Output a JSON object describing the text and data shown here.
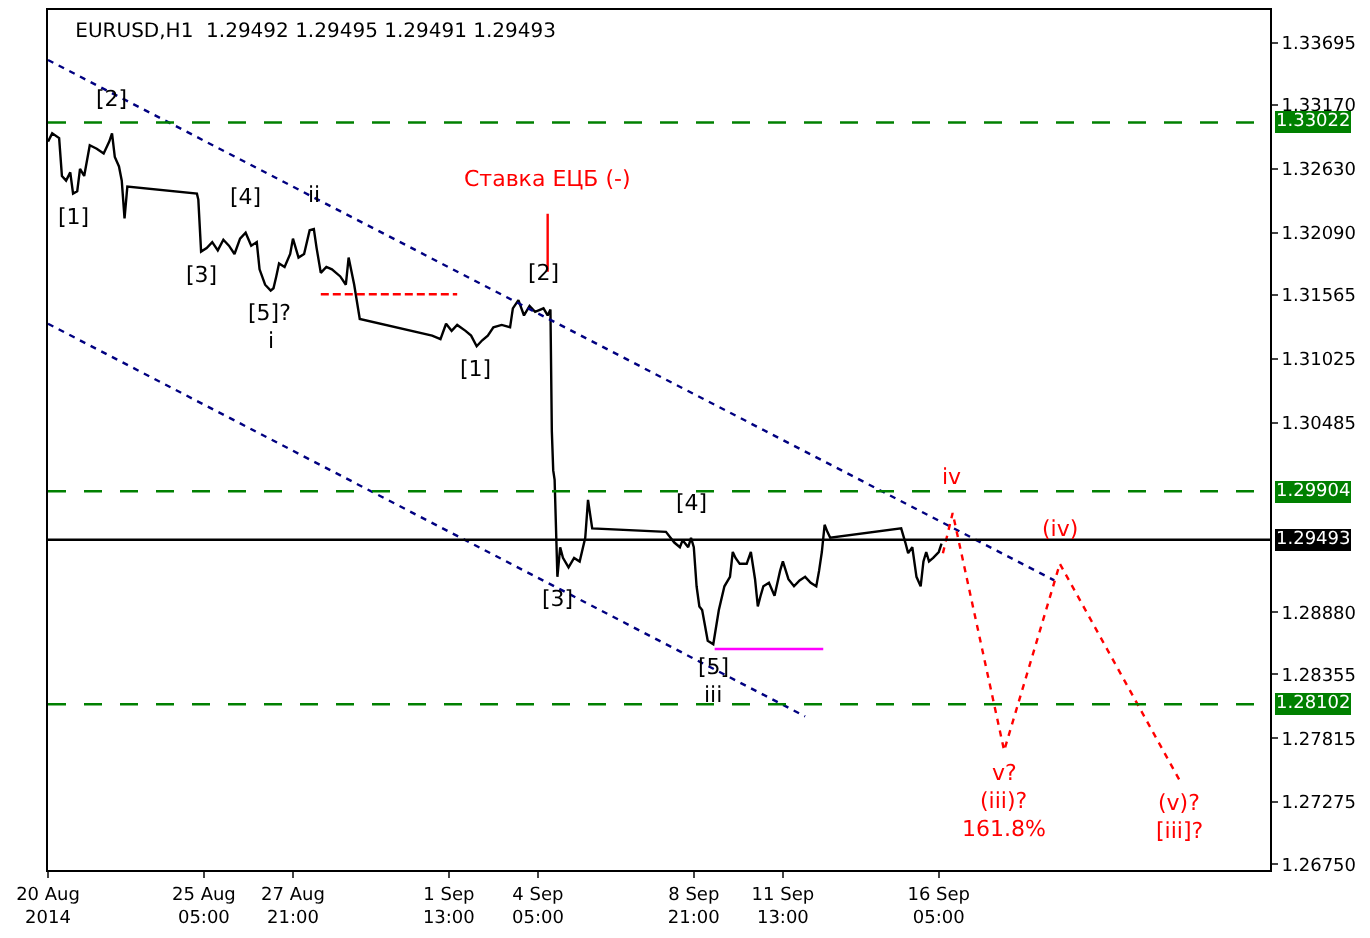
{
  "chart_data": {
    "type": "line",
    "title": "EURUSD,H1  1.29492 1.29495 1.29491 1.29493",
    "xlim": [
      "2014-08-20T13:00",
      "2014-09-26T03:00"
    ],
    "ylim": [
      1.26701,
      1.33973
    ],
    "xticks": [
      {
        "value": "2014-08-20T13:00",
        "label": "20 Aug 2014"
      },
      {
        "value": "2014-08-25T05:00",
        "label": "25 Aug 05:00"
      },
      {
        "value": "2014-08-27T21:00",
        "label": "27 Aug 21:00"
      },
      {
        "value": "2014-09-01T13:00",
        "label": "1 Sep 13:00"
      },
      {
        "value": "2014-09-04T05:00",
        "label": "4 Sep 05:00"
      },
      {
        "value": "2014-09-08T21:00",
        "label": "8 Sep 21:00"
      },
      {
        "value": "2014-09-11T13:00",
        "label": "11 Sep 13:00"
      },
      {
        "value": "2014-09-16T05:00",
        "label": "16 Sep 05:00"
      }
    ],
    "yticks": [
      1.33695,
      {
        "value": 1.3317,
        "label": "1.33170"
      },
      {
        "value": 1.3263,
        "label": "1.32630"
      },
      {
        "value": 1.3209,
        "label": "1.32090"
      },
      1.31565,
      1.31025,
      1.30485,
      {
        "value": 1.2888,
        "label": "1.28880"
      },
      1.28355,
      1.27815,
      1.27275,
      {
        "value": 1.2675,
        "label": "1.26750"
      }
    ],
    "series": [
      {
        "color": "#000000",
        "line_style": "solid",
        "x": [
          "2014-08-20T13:00",
          "2014-08-20T16:00",
          "2014-08-20T21:00",
          "2014-08-20T23:00",
          "2014-08-21T02:00",
          "2014-08-21T05:00",
          "2014-08-21T07:00",
          "2014-08-21T10:00",
          "2014-08-21T12:00",
          "2014-08-21T15:00",
          "2014-08-21T19:00",
          "2014-08-22T00:00",
          "2014-08-22T05:00",
          "2014-08-22T09:00",
          "2014-08-22T11:00",
          "2014-08-22T13:00",
          "2014-08-22T16:00",
          "2014-08-22T18:00",
          "2014-08-22T20:00",
          "2014-08-22T22:00",
          "2014-08-25T00:00",
          "2014-08-25T01:00",
          "2014-08-25T03:00",
          "2014-08-25T07:00",
          "2014-08-25T11:00",
          "2014-08-25T15:00",
          "2014-08-25T19:00",
          "2014-08-25T23:00",
          "2014-08-26T03:00",
          "2014-08-26T07:00",
          "2014-08-26T11:00",
          "2014-08-26T15:00",
          "2014-08-26T19:00",
          "2014-08-26T21:00",
          "2014-08-27T01:00",
          "2014-08-27T05:00",
          "2014-08-27T07:00",
          "2014-08-27T09:00",
          "2014-08-27T11:00",
          "2014-08-27T15:00",
          "2014-08-27T19:00",
          "2014-08-27T21:00",
          "2014-08-28T01:00",
          "2014-08-28T05:00",
          "2014-08-28T09:00",
          "2014-08-28T12:00",
          "2014-08-28T14:00",
          "2014-08-28T17:00",
          "2014-08-28T21:00",
          "2014-08-29T01:00",
          "2014-08-29T07:00",
          "2014-08-29T11:00",
          "2014-08-29T13:00",
          "2014-08-29T17:00",
          "2014-08-29T21:00",
          "2014-09-01T01:00",
          "2014-09-01T07:00",
          "2014-09-01T11:00",
          "2014-09-01T15:00",
          "2014-09-01T19:00",
          "2014-09-02T01:00",
          "2014-09-02T05:00",
          "2014-09-02T09:00",
          "2014-09-02T13:00",
          "2014-09-02T17:00",
          "2014-09-02T21:00",
          "2014-09-03T03:00",
          "2014-09-03T09:00",
          "2014-09-03T11:00",
          "2014-09-03T15:00",
          "2014-09-03T19:00",
          "2014-09-03T23:00",
          "2014-09-04T03:00",
          "2014-09-04T09:00",
          "2014-09-04T12:00",
          "2014-09-04T14:00",
          "2014-09-04T15:00",
          "2014-09-04T16:00",
          "2014-09-04T17:00",
          "2014-09-04T19:00",
          "2014-09-04T21:00",
          "2014-09-04T23:00",
          "2014-09-05T03:00",
          "2014-09-05T07:00",
          "2014-09-05T11:00",
          "2014-09-05T15:00",
          "2014-09-05T17:00",
          "2014-09-05T20:00",
          "2014-09-08T01:00",
          "2014-09-08T07:00",
          "2014-09-08T11:00",
          "2014-09-08T13:00",
          "2014-09-08T15:00",
          "2014-09-08T17:00",
          "2014-09-08T19:00",
          "2014-09-08T21:00",
          "2014-09-08T23:00",
          "2014-09-09T01:00",
          "2014-09-09T03:00",
          "2014-09-09T05:00",
          "2014-09-09T07:00",
          "2014-09-09T11:00",
          "2014-09-09T15:00",
          "2014-09-09T19:00",
          "2014-09-09T23:00",
          "2014-09-10T01:00",
          "2014-09-10T03:00",
          "2014-09-10T06:00",
          "2014-09-10T11:00",
          "2014-09-10T14:00",
          "2014-09-10T17:00",
          "2014-09-10T19:00",
          "2014-09-10T21:00",
          "2014-09-10T23:00",
          "2014-09-11T03:00",
          "2014-09-11T07:00",
          "2014-09-11T11:00",
          "2014-09-11T13:00",
          "2014-09-11T17:00",
          "2014-09-11T21:00",
          "2014-09-12T01:00",
          "2014-09-12T05:00",
          "2014-09-12T09:00",
          "2014-09-12T13:00",
          "2014-09-12T15:00",
          "2014-09-12T17:00",
          "2014-09-12T19:00",
          "2014-09-12T21:00",
          "2014-09-12T23:00",
          "2014-09-15T02:00",
          "2014-09-15T05:00",
          "2014-09-15T07:00",
          "2014-09-15T10:00",
          "2014-09-15T13:00",
          "2014-09-15T16:00",
          "2014-09-15T18:00",
          "2014-09-15T20:00",
          "2014-09-15T22:00",
          "2014-09-16T01:00",
          "2014-09-16T05:00",
          "2014-09-16T07:00"
        ],
        "values": [
          1.3286,
          1.3293,
          1.3289,
          1.3257,
          1.3253,
          1.326,
          1.3242,
          1.3244,
          1.3263,
          1.3257,
          1.3283,
          1.328,
          1.3276,
          1.3286,
          1.3293,
          1.3273,
          1.3265,
          1.3253,
          1.3221,
          1.3248,
          1.3242,
          1.3237,
          1.3193,
          1.3196,
          1.3201,
          1.3194,
          1.3203,
          1.3198,
          1.3191,
          1.3204,
          1.3209,
          1.3198,
          1.3201,
          1.3178,
          1.3165,
          1.316,
          1.3162,
          1.3172,
          1.3183,
          1.318,
          1.3191,
          1.3204,
          1.3188,
          1.3191,
          1.3211,
          1.3212,
          1.3196,
          1.3175,
          1.318,
          1.3178,
          1.3172,
          1.3165,
          1.3188,
          1.3165,
          1.3136,
          1.3122,
          1.3119,
          1.3132,
          1.3126,
          1.3131,
          1.3126,
          1.3122,
          1.3113,
          1.3118,
          1.3122,
          1.3129,
          1.3131,
          1.3129,
          1.3145,
          1.3152,
          1.3139,
          1.3147,
          1.3142,
          1.3145,
          1.3139,
          1.3144,
          1.3041,
          1.3008,
          1.3,
          1.2918,
          1.2943,
          1.2934,
          1.2926,
          1.2934,
          1.2931,
          1.2951,
          1.2983,
          1.2959,
          1.2956,
          1.2947,
          1.2943,
          1.2949,
          1.2946,
          1.2943,
          1.2951,
          1.2943,
          1.291,
          1.2893,
          1.289,
          1.2877,
          1.2864,
          1.2861,
          1.289,
          1.291,
          1.2918,
          1.2939,
          1.2934,
          1.2929,
          1.2929,
          1.2939,
          1.2916,
          1.2893,
          1.2902,
          1.291,
          1.2913,
          1.2902,
          1.2923,
          1.2931,
          1.2916,
          1.291,
          1.2915,
          1.2918,
          1.2913,
          1.291,
          1.2923,
          1.2939,
          1.2962,
          1.2956,
          1.2951,
          1.2959,
          1.2947,
          1.2938,
          1.2943,
          1.2918,
          1.291,
          1.2931,
          1.2939,
          1.2931,
          1.2934,
          1.2939,
          1.2946
        ]
      },
      {
        "color": "#000080",
        "line_style": "dotted",
        "x": [
          "2014-08-20T13:00",
          "2014-09-19T16:00"
        ],
        "values": [
          1.3355,
          1.2915
        ]
      },
      {
        "color": "#000080",
        "line_style": "dotted",
        "x": [
          "2014-08-20T13:00",
          "2014-09-12T05:00"
        ],
        "values": [
          1.3132,
          1.28
        ]
      },
      {
        "color": "#ff0000",
        "line_style": "dotted",
        "x": [
          "2014-09-16T08:00",
          "2014-09-16T15:00",
          "2014-09-18T04:00",
          "2014-09-19T20:00",
          "2014-09-23T10:00"
        ],
        "values": [
          1.2938,
          1.2972,
          1.2771,
          1.2929,
          1.2746
        ]
      },
      {
        "color": "#ff0000",
        "line_style": "dashed",
        "x": [
          "2014-08-28T17:00",
          "2014-09-01T19:00"
        ],
        "values": [
          1.3157,
          1.3157
        ]
      },
      {
        "color": "#ff00ff",
        "line_style": "solid",
        "x": [
          "2014-09-09T12:00",
          "2014-09-12T18:00"
        ],
        "values": [
          1.2857,
          1.2857
        ]
      },
      {
        "color": "#ff0000",
        "line_style": "solid",
        "x": [
          "2014-09-04T12:00",
          "2014-09-04T12:00"
        ],
        "values": [
          1.3225,
          1.3176
        ]
      }
    ],
    "ref_lines": [
      {
        "axis": "y",
        "value": 1.33022,
        "label": "1.33022",
        "color": "#008000",
        "line_style": "dashed"
      },
      {
        "axis": "y",
        "value": 1.29904,
        "label": "1.29904",
        "color": "#008000",
        "line_style": "dashed"
      },
      {
        "axis": "y",
        "value": 1.28102,
        "label": "1.28102",
        "color": "#008000",
        "line_style": "dashed"
      },
      {
        "axis": "y",
        "value": 1.29493,
        "label": "1.29493",
        "color": "#000000",
        "line_style": "solid"
      }
    ],
    "annotations": [
      {
        "text": "[1]",
        "x": "2014-08-21T07:00",
        "y": 1.3242
      },
      {
        "text": "[2]",
        "x": "2014-08-22T11:00",
        "y": 1.3293
      },
      {
        "text": "[3]",
        "x": "2014-08-25T03:00",
        "y": 1.3193
      },
      {
        "text": "[4]",
        "x": "2014-08-26T11:00",
        "y": 1.3209
      },
      {
        "text": "[5]?",
        "x": "2014-08-27T05:00",
        "y": 1.316
      },
      {
        "text": "i",
        "x": "2014-08-27T05:00",
        "y": 1.316
      },
      {
        "text": "ii",
        "x": "2014-08-28T12:00",
        "y": 1.3212
      },
      {
        "text": "[1]",
        "x": "2014-09-02T09:00",
        "y": 1.3113
      },
      {
        "text": "[2]",
        "x": "2014-09-04T09:00",
        "y": 1.3145
      },
      {
        "text": "Ставка ЕЦБ (-)",
        "x": "2014-09-04T12:00",
        "y": 1.3225
      },
      {
        "text": "[3]",
        "x": "2014-09-04T19:00",
        "y": 1.2918
      },
      {
        "text": "[4]",
        "x": "2014-09-08T19:00",
        "y": 1.2951
      },
      {
        "text": "[5]",
        "x": "2014-09-09T11:00",
        "y": 1.2861
      },
      {
        "text": "iii",
        "x": "2014-09-09T11:00",
        "y": 1.2861
      },
      {
        "text": "iv",
        "x": "2014-09-16T15:00",
        "y": 1.2972
      },
      {
        "text": "(iv)",
        "x": "2014-09-19T20:00",
        "y": 1.2929
      },
      {
        "text": "v?",
        "x": "2014-09-18T04:00",
        "y": 1.2771
      },
      {
        "text": "(iii)?",
        "x": "2014-09-18T04:00",
        "y": 1.2771
      },
      "161.8%",
      {
        "text": "(v)?",
        "x": "2014-09-23T10:00",
        "y": 1.2746
      },
      {
        "text": "[iii]?",
        "x": "2014-09-23T10:00",
        "y": 1.2746
      }
    ]
  }
}
